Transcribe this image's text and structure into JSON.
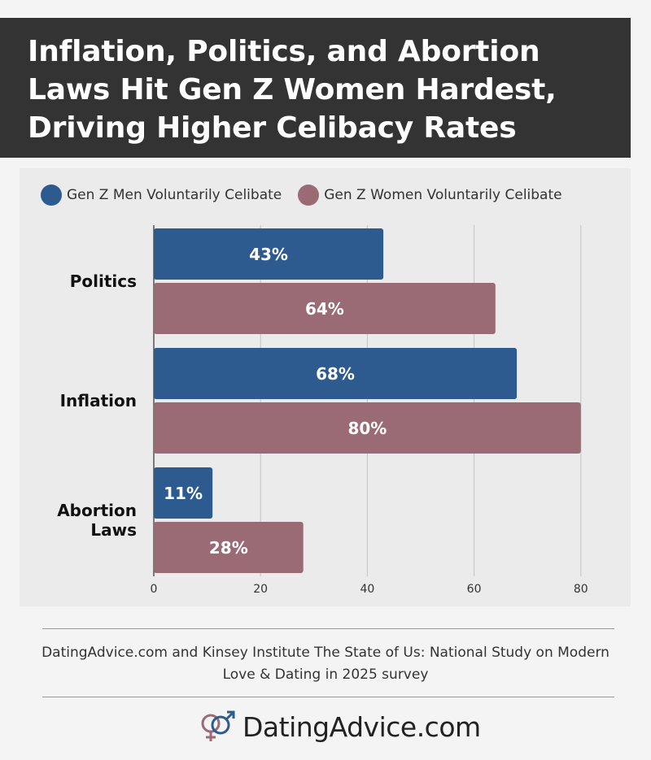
{
  "title": "Inflation, Politics, and Abortion Laws Hit Gen Z Women Hardest, Driving Higher Celibacy Rates",
  "colors": {
    "men": "#2d5b8f",
    "women": "#9b6b75",
    "title_bg": "#333333"
  },
  "chart_data": {
    "type": "bar",
    "orientation": "horizontal",
    "categories": [
      "Politics",
      "Inflation",
      "Abortion Laws"
    ],
    "series": [
      {
        "name": "Gen Z Men Voluntarily Celibate",
        "values": [
          43,
          68,
          11
        ],
        "labels": [
          "43%",
          "68%",
          "11%"
        ]
      },
      {
        "name": "Gen Z Women Voluntarily Celibate",
        "values": [
          64,
          80,
          28
        ],
        "labels": [
          "64%",
          "80%",
          "28%"
        ]
      }
    ],
    "xlim": [
      0,
      80
    ],
    "xticks": [
      "0",
      "20",
      "40",
      "60",
      "80"
    ],
    "grid": true,
    "legend_position": "top-left"
  },
  "source": "DatingAdvice.com and Kinsey Institute The State of Us: National Study on Modern Love & Dating in 2025 survey",
  "brand": {
    "name": "DatingAdvice.com",
    "icon": "gender-symbols-logo"
  }
}
